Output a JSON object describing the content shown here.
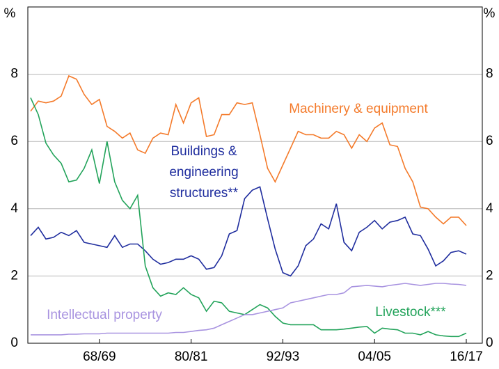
{
  "chart_data": {
    "type": "line",
    "y_label": "%",
    "categories": [
      null,
      null,
      null,
      null,
      null,
      null,
      null,
      null,
      null,
      "68/69",
      null,
      null,
      null,
      null,
      null,
      null,
      null,
      null,
      null,
      null,
      null,
      "80/81",
      null,
      null,
      null,
      null,
      null,
      null,
      null,
      null,
      null,
      null,
      null,
      "92/93",
      null,
      null,
      null,
      null,
      null,
      null,
      null,
      null,
      null,
      null,
      null,
      "04/05",
      null,
      null,
      null,
      null,
      null,
      null,
      null,
      null,
      null,
      null,
      null,
      "16/17"
    ],
    "ylim": [
      0,
      10
    ],
    "yticks": [
      0,
      2,
      4,
      6,
      8
    ],
    "grid": true,
    "series": [
      {
        "name": [
          "Machinery & equipment"
        ],
        "color": "#f47a2a",
        "values": [
          6.9,
          7.2,
          7.15,
          7.2,
          7.35,
          7.95,
          7.85,
          7.4,
          7.1,
          7.25,
          6.45,
          6.3,
          6.1,
          6.25,
          5.75,
          5.65,
          6.1,
          6.25,
          6.2,
          7.1,
          6.55,
          7.15,
          7.3,
          6.15,
          6.2,
          6.8,
          6.8,
          7.15,
          7.1,
          7.15,
          6.2,
          5.2,
          4.8,
          5.3,
          5.8,
          6.3,
          6.2,
          6.2,
          6.1,
          6.1,
          6.3,
          6.2,
          5.8,
          6.2,
          6.0,
          6.4,
          6.55,
          5.9,
          5.85,
          5.2,
          4.8,
          4.05,
          4.0,
          3.75,
          3.55,
          3.75,
          3.75,
          3.5
        ]
      },
      {
        "name": [
          "Buildings &",
          "engineering",
          "structures**"
        ],
        "color": "#1f2d9e",
        "values": [
          3.2,
          3.45,
          3.1,
          3.15,
          3.3,
          3.2,
          3.35,
          3.0,
          2.95,
          2.9,
          2.85,
          3.2,
          2.85,
          2.95,
          2.95,
          2.75,
          2.5,
          2.35,
          2.4,
          2.5,
          2.5,
          2.6,
          2.5,
          2.2,
          2.25,
          2.6,
          3.25,
          3.35,
          4.3,
          4.55,
          4.65,
          3.7,
          2.8,
          2.1,
          2.0,
          2.3,
          2.9,
          3.1,
          3.55,
          3.4,
          4.15,
          3.0,
          2.75,
          3.3,
          3.45,
          3.65,
          3.4,
          3.6,
          3.65,
          3.75,
          3.25,
          3.2,
          2.8,
          2.3,
          2.45,
          2.7,
          2.75,
          2.65
        ]
      },
      {
        "name": [
          "Livestock***"
        ],
        "color": "#22a35a",
        "values": [
          7.3,
          6.8,
          5.95,
          5.6,
          5.35,
          4.8,
          4.85,
          5.2,
          5.75,
          4.75,
          6.0,
          4.8,
          4.25,
          4.0,
          4.4,
          2.3,
          1.65,
          1.4,
          1.5,
          1.45,
          1.65,
          1.45,
          1.35,
          0.95,
          1.25,
          1.2,
          0.95,
          0.9,
          0.85,
          1.0,
          1.15,
          1.05,
          0.8,
          0.6,
          0.55,
          0.55,
          0.55,
          0.55,
          0.4,
          0.4,
          0.4,
          0.42,
          0.45,
          0.48,
          0.5,
          0.3,
          0.45,
          0.42,
          0.4,
          0.3,
          0.3,
          0.25,
          0.35,
          0.25,
          0.22,
          0.2,
          0.2,
          0.3
        ]
      },
      {
        "name": [
          "Intellectual property"
        ],
        "color": "#a893e0",
        "values": [
          0.25,
          0.25,
          0.25,
          0.25,
          0.25,
          0.27,
          0.27,
          0.28,
          0.28,
          0.28,
          0.3,
          0.3,
          0.3,
          0.3,
          0.3,
          0.3,
          0.3,
          0.3,
          0.3,
          0.32,
          0.32,
          0.35,
          0.38,
          0.4,
          0.45,
          0.55,
          0.65,
          0.75,
          0.85,
          0.85,
          0.9,
          0.95,
          1.0,
          1.05,
          1.2,
          1.25,
          1.3,
          1.35,
          1.4,
          1.45,
          1.45,
          1.5,
          1.68,
          1.7,
          1.72,
          1.7,
          1.68,
          1.72,
          1.75,
          1.78,
          1.75,
          1.72,
          1.75,
          1.78,
          1.78,
          1.76,
          1.75,
          1.72
        ]
      }
    ]
  }
}
